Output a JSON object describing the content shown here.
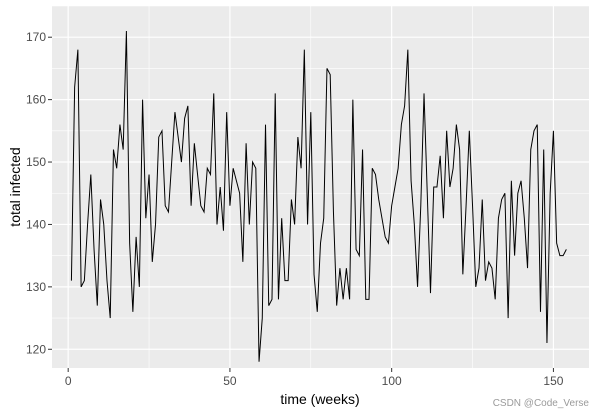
{
  "chart_data": {
    "type": "line",
    "title": "",
    "xlabel": "time (weeks)",
    "ylabel": "total infected",
    "xlim": [
      -5,
      161
    ],
    "ylim": [
      117,
      175
    ],
    "x_ticks": [
      0,
      50,
      100,
      150
    ],
    "y_ticks": [
      120,
      130,
      140,
      150,
      160,
      170
    ],
    "grid": true,
    "background": "#ebebeb",
    "grid_color": "#ffffff",
    "line_color": "#000000",
    "series": [
      {
        "values": [
          131,
          162,
          168,
          130,
          131,
          140,
          148,
          136,
          127,
          144,
          140,
          131,
          125,
          152,
          149,
          156,
          152,
          171,
          137,
          126,
          138,
          130,
          160,
          141,
          148,
          134,
          140,
          154,
          155,
          143,
          142,
          150,
          158,
          154,
          150,
          157,
          159,
          143,
          153,
          148,
          143,
          142,
          149,
          148,
          161,
          140,
          146,
          139,
          158,
          143,
          149,
          147,
          145,
          134,
          153,
          140,
          150,
          149,
          118,
          125,
          156,
          127,
          128,
          161,
          128,
          141,
          131,
          131,
          144,
          140,
          154,
          149,
          168,
          140,
          158,
          132,
          126,
          137,
          141,
          165,
          164,
          142,
          127,
          133,
          128,
          133,
          128,
          160,
          136,
          135,
          152,
          128,
          128,
          149,
          148,
          144,
          141,
          138,
          137,
          143,
          146,
          149,
          156,
          159,
          168,
          147,
          140,
          130,
          143,
          161,
          145,
          129,
          146,
          146,
          151,
          141,
          155,
          146,
          149,
          156,
          152,
          132,
          143,
          155,
          143,
          130,
          133,
          144,
          131,
          134,
          133,
          128,
          141,
          144,
          145,
          125,
          147,
          135,
          145,
          147,
          141,
          133,
          152,
          155,
          156,
          126,
          152,
          121,
          145,
          155,
          137,
          135,
          135,
          136
        ]
      }
    ]
  },
  "watermark": "CSDN @Code_Verse"
}
